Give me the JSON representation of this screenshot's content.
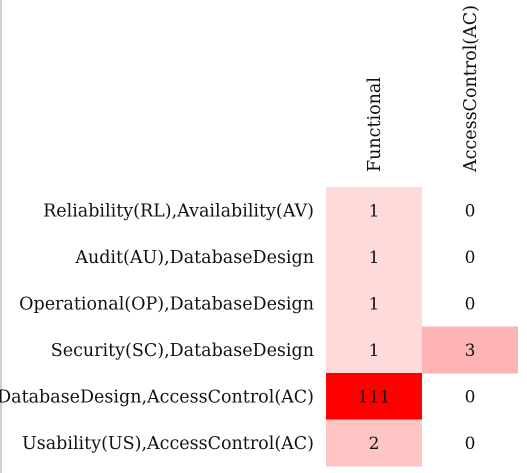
{
  "chart_data": {
    "type": "heatmap",
    "title": "",
    "xlabel": "",
    "ylabel": "",
    "columns": [
      "Functional",
      "AccessControl(AC)"
    ],
    "rows": [
      "Reliability(RL),Availability(AV)",
      "Audit(AU),DatabaseDesign",
      "Operational(OP),DatabaseDesign",
      "Security(SC),DatabaseDesign",
      "DatabaseDesign,AccessControl(AC)",
      "Usability(US),AccessControl(AC)"
    ],
    "values": [
      [
        1,
        0
      ],
      [
        1,
        0
      ],
      [
        1,
        0
      ],
      [
        1,
        3
      ],
      [
        111,
        0
      ],
      [
        2,
        0
      ]
    ],
    "color_scale": {
      "low": "#ffffff",
      "high": "#ff0000",
      "max_value": 111
    },
    "grid": false,
    "legend": "none"
  }
}
